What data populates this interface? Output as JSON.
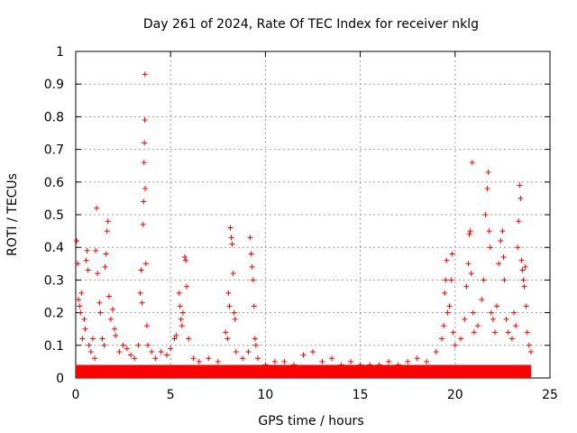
{
  "chart_data": {
    "type": "scatter",
    "title": "Day 261 of 2024, Rate Of TEC Index for receiver nklg",
    "xlabel": "GPS time / hours",
    "ylabel": "ROTI / TECUs",
    "xlim": [
      0,
      25
    ],
    "ylim": [
      0,
      1
    ],
    "xticks": [
      "0",
      "5",
      "10",
      "15",
      "20",
      "25"
    ],
    "yticks": [
      "0",
      "0.1",
      "0.2",
      "0.3",
      "0.4",
      "0.5",
      "0.6",
      "0.7",
      "0.8",
      "0.9",
      "1"
    ],
    "grid": true,
    "marker": "+",
    "marker_color": "#ff0000",
    "background_band": {
      "x_range": [
        0,
        24
      ],
      "y_range": [
        0,
        0.04
      ]
    },
    "series": [
      {
        "values": [
          [
            0.05,
            0.42
          ],
          [
            0.1,
            0.35
          ],
          [
            0.15,
            0.24
          ],
          [
            0.2,
            0.22
          ],
          [
            0.25,
            0.2
          ],
          [
            0.3,
            0.26
          ],
          [
            0.35,
            0.12
          ],
          [
            0.45,
            0.18
          ],
          [
            0.5,
            0.15
          ],
          [
            0.55,
            0.36
          ],
          [
            0.6,
            0.39
          ],
          [
            0.65,
            0.33
          ],
          [
            0.7,
            0.1
          ],
          [
            0.8,
            0.08
          ],
          [
            0.9,
            0.12
          ],
          [
            1.0,
            0.06
          ],
          [
            1.05,
            0.39
          ],
          [
            1.1,
            0.52
          ],
          [
            1.15,
            0.32
          ],
          [
            1.25,
            0.23
          ],
          [
            1.3,
            0.2
          ],
          [
            1.4,
            0.12
          ],
          [
            1.5,
            0.1
          ],
          [
            1.55,
            0.34
          ],
          [
            1.6,
            0.38
          ],
          [
            1.65,
            0.45
          ],
          [
            1.7,
            0.48
          ],
          [
            1.75,
            0.25
          ],
          [
            1.85,
            0.18
          ],
          [
            1.95,
            0.21
          ],
          [
            2.05,
            0.15
          ],
          [
            2.1,
            0.13
          ],
          [
            2.3,
            0.08
          ],
          [
            2.5,
            0.1
          ],
          [
            2.7,
            0.09
          ],
          [
            2.9,
            0.07
          ],
          [
            3.1,
            0.06
          ],
          [
            3.3,
            0.1
          ],
          [
            3.4,
            0.26
          ],
          [
            3.45,
            0.33
          ],
          [
            3.5,
            0.23
          ],
          [
            3.55,
            0.47
          ],
          [
            3.58,
            0.54
          ],
          [
            3.6,
            0.66
          ],
          [
            3.62,
            0.72
          ],
          [
            3.64,
            0.79
          ],
          [
            3.65,
            0.93
          ],
          [
            3.66,
            0.58
          ],
          [
            3.7,
            0.35
          ],
          [
            3.75,
            0.16
          ],
          [
            3.8,
            0.1
          ],
          [
            4.0,
            0.08
          ],
          [
            4.2,
            0.06
          ],
          [
            4.5,
            0.08
          ],
          [
            4.8,
            0.07
          ],
          [
            5.0,
            0.09
          ],
          [
            5.2,
            0.12
          ],
          [
            5.3,
            0.13
          ],
          [
            5.45,
            0.26
          ],
          [
            5.5,
            0.22
          ],
          [
            5.55,
            0.18
          ],
          [
            5.6,
            0.16
          ],
          [
            5.65,
            0.2
          ],
          [
            5.75,
            0.37
          ],
          [
            5.8,
            0.36
          ],
          [
            5.85,
            0.28
          ],
          [
            5.95,
            0.12
          ],
          [
            6.2,
            0.06
          ],
          [
            6.5,
            0.05
          ],
          [
            7.0,
            0.06
          ],
          [
            7.5,
            0.05
          ],
          [
            7.9,
            0.14
          ],
          [
            8.0,
            0.12
          ],
          [
            8.05,
            0.26
          ],
          [
            8.1,
            0.22
          ],
          [
            8.15,
            0.46
          ],
          [
            8.2,
            0.43
          ],
          [
            8.25,
            0.41
          ],
          [
            8.3,
            0.32
          ],
          [
            8.35,
            0.2
          ],
          [
            8.4,
            0.18
          ],
          [
            8.45,
            0.08
          ],
          [
            8.8,
            0.06
          ],
          [
            9.1,
            0.08
          ],
          [
            9.2,
            0.43
          ],
          [
            9.25,
            0.38
          ],
          [
            9.3,
            0.34
          ],
          [
            9.35,
            0.3
          ],
          [
            9.4,
            0.22
          ],
          [
            9.45,
            0.12
          ],
          [
            9.5,
            0.1
          ],
          [
            9.6,
            0.06
          ],
          [
            10.0,
            0.04
          ],
          [
            10.5,
            0.05
          ],
          [
            11.0,
            0.05
          ],
          [
            11.5,
            0.04
          ],
          [
            12.0,
            0.07
          ],
          [
            12.5,
            0.08
          ],
          [
            13.0,
            0.05
          ],
          [
            13.5,
            0.06
          ],
          [
            14.0,
            0.04
          ],
          [
            14.5,
            0.05
          ],
          [
            15.0,
            0.04
          ],
          [
            15.5,
            0.04
          ],
          [
            16.0,
            0.04
          ],
          [
            16.5,
            0.05
          ],
          [
            17.0,
            0.04
          ],
          [
            17.5,
            0.05
          ],
          [
            18.0,
            0.06
          ],
          [
            18.5,
            0.05
          ],
          [
            19.0,
            0.08
          ],
          [
            19.3,
            0.12
          ],
          [
            19.4,
            0.16
          ],
          [
            19.45,
            0.26
          ],
          [
            19.5,
            0.3
          ],
          [
            19.55,
            0.36
          ],
          [
            19.6,
            0.2
          ],
          [
            19.7,
            0.22
          ],
          [
            19.8,
            0.3
          ],
          [
            19.85,
            0.38
          ],
          [
            19.9,
            0.14
          ],
          [
            20.0,
            0.1
          ],
          [
            20.3,
            0.12
          ],
          [
            20.5,
            0.18
          ],
          [
            20.6,
            0.28
          ],
          [
            20.7,
            0.35
          ],
          [
            20.75,
            0.44
          ],
          [
            20.8,
            0.45
          ],
          [
            20.85,
            0.32
          ],
          [
            20.9,
            0.66
          ],
          [
            20.95,
            0.2
          ],
          [
            21.0,
            0.14
          ],
          [
            21.2,
            0.16
          ],
          [
            21.4,
            0.24
          ],
          [
            21.5,
            0.3
          ],
          [
            21.6,
            0.5
          ],
          [
            21.7,
            0.58
          ],
          [
            21.75,
            0.63
          ],
          [
            21.8,
            0.45
          ],
          [
            21.85,
            0.4
          ],
          [
            21.9,
            0.2
          ],
          [
            22.0,
            0.18
          ],
          [
            22.1,
            0.14
          ],
          [
            22.2,
            0.22
          ],
          [
            22.3,
            0.35
          ],
          [
            22.4,
            0.42
          ],
          [
            22.5,
            0.45
          ],
          [
            22.55,
            0.37
          ],
          [
            22.6,
            0.3
          ],
          [
            22.7,
            0.18
          ],
          [
            22.8,
            0.14
          ],
          [
            23.0,
            0.12
          ],
          [
            23.1,
            0.2
          ],
          [
            23.2,
            0.16
          ],
          [
            23.3,
            0.4
          ],
          [
            23.35,
            0.48
          ],
          [
            23.4,
            0.59
          ],
          [
            23.45,
            0.55
          ],
          [
            23.5,
            0.36
          ],
          [
            23.55,
            0.33
          ],
          [
            23.6,
            0.3
          ],
          [
            23.65,
            0.28
          ],
          [
            23.7,
            0.34
          ],
          [
            23.75,
            0.22
          ],
          [
            23.8,
            0.14
          ],
          [
            23.9,
            0.1
          ],
          [
            24.0,
            0.08
          ]
        ]
      }
    ]
  }
}
